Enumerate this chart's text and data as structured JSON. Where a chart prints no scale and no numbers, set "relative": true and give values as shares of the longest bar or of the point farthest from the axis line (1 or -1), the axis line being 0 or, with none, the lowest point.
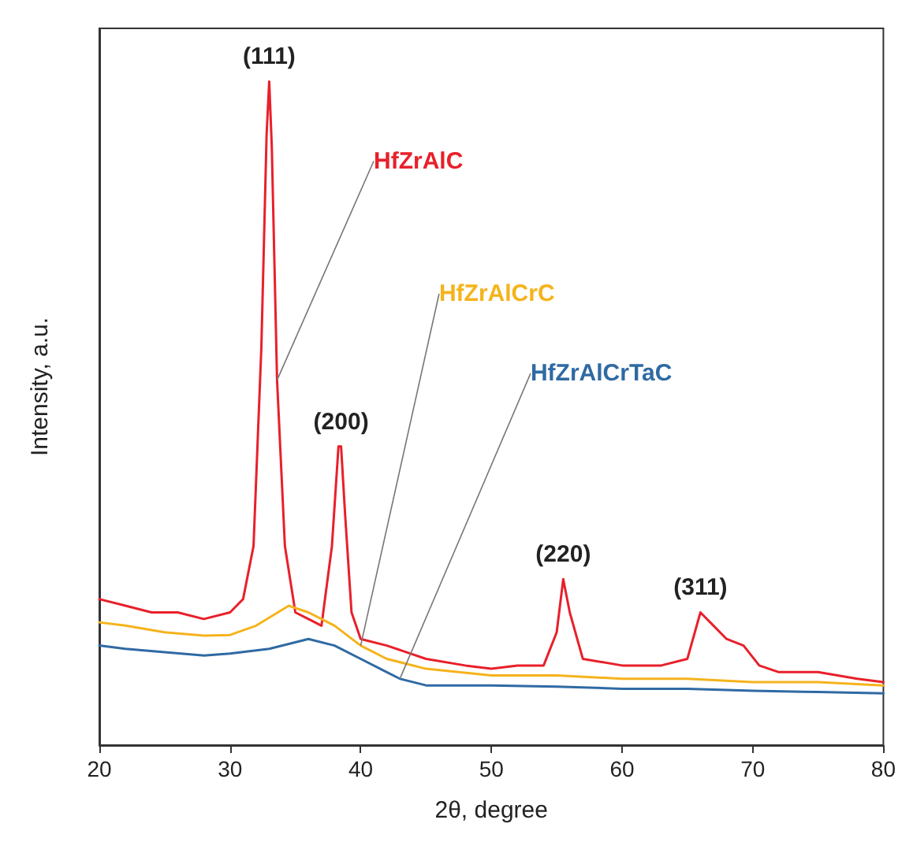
{
  "chart_data": {
    "type": "line",
    "relative": true,
    "xlabel": "2θ, degree",
    "ylabel": "Intensity, a.u.",
    "xlim": [
      20,
      80
    ],
    "xticks": [
      20,
      30,
      40,
      50,
      60,
      70,
      80
    ],
    "grid": false,
    "legend": false,
    "marker": "none",
    "line_style": "solid",
    "series": [
      {
        "name": "HfZrAlC",
        "color": "#e8202a",
        "x": [
          20,
          22,
          24,
          26,
          28,
          30,
          31,
          31.8,
          32.4,
          32.8,
          33,
          33.2,
          33.6,
          34.2,
          35,
          36,
          37,
          37.8,
          38.3,
          38.5,
          38.8,
          39.3,
          40,
          42,
          45,
          48,
          50,
          52,
          54,
          55,
          55.5,
          56,
          57,
          60,
          63,
          65,
          66,
          67,
          68,
          69.3,
          70.5,
          72,
          75,
          78,
          80
        ],
        "values": [
          0.22,
          0.21,
          0.2,
          0.2,
          0.19,
          0.2,
          0.22,
          0.3,
          0.6,
          0.92,
          1,
          0.9,
          0.55,
          0.3,
          0.2,
          0.19,
          0.18,
          0.3,
          0.45,
          0.45,
          0.35,
          0.2,
          0.16,
          0.15,
          0.13,
          0.12,
          0.115,
          0.12,
          0.12,
          0.17,
          0.25,
          0.2,
          0.13,
          0.12,
          0.12,
          0.13,
          0.2,
          0.18,
          0.16,
          0.15,
          0.12,
          0.11,
          0.11,
          0.1,
          0.095
        ]
      },
      {
        "name": "HfZrAlCrC",
        "color": "#f5b31c",
        "x": [
          20,
          22,
          25,
          28,
          30,
          32,
          34.5,
          36,
          37,
          38,
          40,
          42,
          45,
          50,
          55,
          60,
          65,
          70,
          75,
          80
        ],
        "values": [
          0.185,
          0.18,
          0.17,
          0.165,
          0.166,
          0.18,
          0.21,
          0.2,
          0.19,
          0.18,
          0.15,
          0.13,
          0.115,
          0.105,
          0.105,
          0.1,
          0.1,
          0.095,
          0.095,
          0.09
        ]
      },
      {
        "name": "HfZrAlCrTaC",
        "color": "#2f6aa3",
        "x": [
          20,
          22,
          25,
          28,
          30,
          33,
          36,
          38,
          40,
          42,
          43,
          45,
          50,
          55,
          60,
          65,
          70,
          75,
          80
        ],
        "values": [
          0.15,
          0.145,
          0.14,
          0.135,
          0.138,
          0.145,
          0.16,
          0.15,
          0.13,
          0.11,
          0.1,
          0.09,
          0.09,
          0.088,
          0.085,
          0.085,
          0.082,
          0.08,
          0.078
        ]
      }
    ],
    "annotations": [
      {
        "text": "(111)",
        "x": 33,
        "y": 1
      },
      {
        "text": "(200)",
        "x": 38.5,
        "y": 0.45
      },
      {
        "text": "(220)",
        "x": 55.5,
        "y": 0.25
      },
      {
        "text": "(311)",
        "x": 66,
        "y": 0.2
      }
    ]
  }
}
